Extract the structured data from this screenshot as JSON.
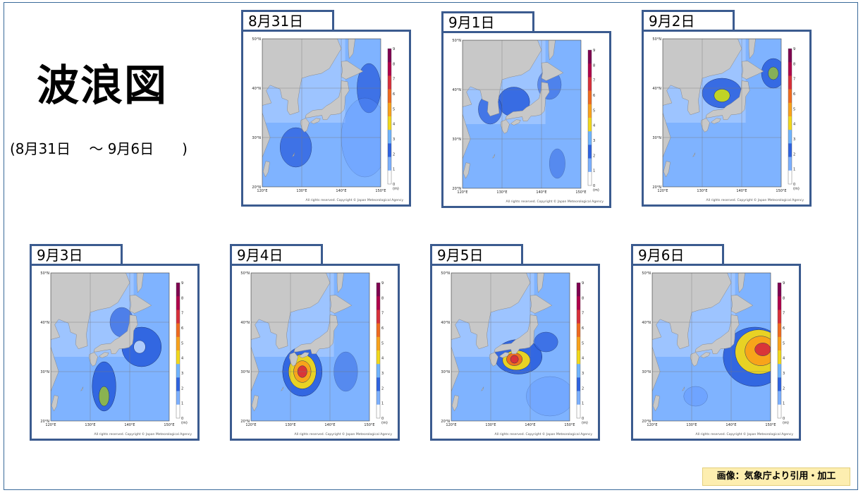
{
  "title": "波浪図",
  "date_range": "(8月31日　 ～ 9月6日　　)",
  "credit": "画像：気象庁より引用・加工",
  "copyright": "All rights reserved. Copyright © Japan Meteorological Agency",
  "colorbar": {
    "ticks": [
      "9",
      "8",
      "7",
      "6",
      "5",
      "4",
      "3",
      "2",
      "1",
      "0"
    ],
    "unit": "(m)",
    "colors": [
      "#7f0050",
      "#b0004a",
      "#d8303a",
      "#f06a1e",
      "#f9a21a",
      "#f2d81a",
      "#6fb4ff",
      "#2e63e0",
      "#7cb0ff",
      "#ffffff"
    ]
  },
  "lat_labels": [
    "50°N",
    "40°N",
    "30°N",
    "20°N"
  ],
  "lon_labels": [
    "120°E",
    "130°E",
    "140°E",
    "150°E"
  ],
  "panels": [
    {
      "date": "8月31日",
      "max_wave_m": 2
    },
    {
      "date": "9月1日",
      "max_wave_m": 2.5
    },
    {
      "date": "9月2日",
      "max_wave_m": 4
    },
    {
      "date": "9月3日",
      "max_wave_m": 4
    },
    {
      "date": "9月4日",
      "max_wave_m": 6
    },
    {
      "date": "9月5日",
      "max_wave_m": 6
    },
    {
      "date": "9月6日",
      "max_wave_m": 6
    }
  ]
}
